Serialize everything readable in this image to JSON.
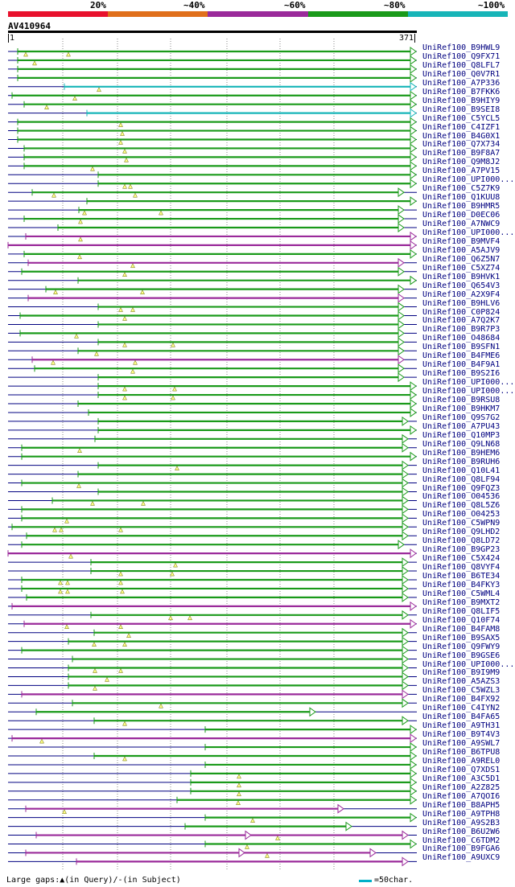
{
  "legend": {
    "segments": [
      {
        "label": "20%",
        "color": "#e8112d"
      },
      {
        "label": "~40%",
        "color": "#e06f1b"
      },
      {
        "label": "~60%",
        "color": "#9a2a9a"
      },
      {
        "label": "~80%",
        "color": "#1a9a1a"
      },
      {
        "label": "~100%",
        "color": "#17b5b8"
      }
    ]
  },
  "query": {
    "id": "AV410964",
    "start": "1",
    "end": "371"
  },
  "colors": {
    "green": "#1a9a1a",
    "magenta": "#9a2a9a",
    "cyan": "#17b5b8",
    "guide": "#000080"
  },
  "hits": [
    {
      "name": "UniRef100_B9HWL9",
      "color": "green",
      "s": 22,
      "e": 510,
      "tri": [
        32,
        85
      ]
    },
    {
      "name": "Q9FX71",
      "color": "green",
      "s": 22,
      "e": 510,
      "tri": [
        43
      ]
    },
    {
      "name": "Q8LFL7",
      "color": "green",
      "s": 22,
      "e": 510,
      "tri": []
    },
    {
      "name": "Q0V7R1",
      "color": "green",
      "s": 22,
      "e": 510,
      "tri": []
    },
    {
      "name": "A7P336",
      "color": "cyan",
      "s": 80,
      "e": 510,
      "tri": [
        123
      ]
    },
    {
      "name": "B7FKK6",
      "color": "green",
      "s": 15,
      "e": 510,
      "tri": [
        93
      ]
    },
    {
      "name": "B9HIY9",
      "color": "green",
      "s": 30,
      "e": 510,
      "tri": [
        58
      ]
    },
    {
      "name": "B9SEI8",
      "color": "cyan",
      "s": 108,
      "e": 510,
      "tri": []
    },
    {
      "name": "C5YCL5",
      "color": "green",
      "s": 22,
      "e": 510,
      "tri": [
        150
      ]
    },
    {
      "name": "C4IZF1",
      "color": "green",
      "s": 22,
      "e": 510,
      "tri": [
        152
      ]
    },
    {
      "name": "B4G0X1",
      "color": "green",
      "s": 22,
      "e": 510,
      "tri": [
        150
      ]
    },
    {
      "name": "Q7X734",
      "color": "green",
      "s": 30,
      "e": 510,
      "tri": [
        155
      ]
    },
    {
      "name": "B9F8A7",
      "color": "green",
      "s": 30,
      "e": 510,
      "tri": [
        157
      ]
    },
    {
      "name": "Q9M8J2",
      "color": "green",
      "s": 30,
      "e": 510,
      "tri": [
        115
      ]
    },
    {
      "name": "A7PV15",
      "color": "green",
      "s": 122,
      "e": 510,
      "tri": []
    },
    {
      "name": "UPI000...",
      "color": "green",
      "s": 122,
      "e": 510,
      "tri": [
        155,
        162
      ]
    },
    {
      "name": "C5Z7K9",
      "color": "green",
      "s": 40,
      "e": 495,
      "tri": [
        67,
        168
      ]
    },
    {
      "name": "Q1KUU8",
      "color": "green",
      "s": 108,
      "e": 510,
      "tri": []
    },
    {
      "name": "B9HMR5",
      "color": "green",
      "s": 98,
      "e": 495,
      "tri": [
        105,
        200
      ]
    },
    {
      "name": "D0EC06",
      "color": "green",
      "s": 30,
      "e": 495,
      "tri": [
        100
      ]
    },
    {
      "name": "A7NWC9",
      "color": "green",
      "s": 72,
      "e": 495,
      "tri": []
    },
    {
      "name": "UPI000...",
      "color": "magenta",
      "s": 32,
      "e": 510,
      "tri": [
        100
      ]
    },
    {
      "name": "B9MVF4",
      "color": "magenta",
      "s": 10,
      "e": 510,
      "tri": []
    },
    {
      "name": "A5AJV9",
      "color": "green",
      "s": 30,
      "e": 510,
      "tri": [
        99
      ]
    },
    {
      "name": "Q6Z5N7",
      "color": "magenta",
      "s": 35,
      "e": 495,
      "tri": [
        165
      ]
    },
    {
      "name": "C5XZ74",
      "color": "green",
      "s": 27,
      "e": 495,
      "tri": [
        155
      ]
    },
    {
      "name": "B9HVK1",
      "color": "green",
      "s": 97,
      "e": 510,
      "tri": []
    },
    {
      "name": "Q654V3",
      "color": "green",
      "s": 57,
      "e": 495,
      "tri": [
        69,
        177
      ]
    },
    {
      "name": "A2X9F4",
      "color": "magenta",
      "s": 35,
      "e": 495,
      "tri": []
    },
    {
      "name": "B9HLV6",
      "color": "green",
      "s": 122,
      "e": 495,
      "tri": [
        150,
        165
      ]
    },
    {
      "name": "C0P824",
      "color": "green",
      "s": 25,
      "e": 495,
      "tri": [
        155
      ]
    },
    {
      "name": "A7Q2K7",
      "color": "green",
      "s": 122,
      "e": 495,
      "tri": []
    },
    {
      "name": "B9R7P3",
      "color": "green",
      "s": 25,
      "e": 495,
      "tri": [
        95
      ]
    },
    {
      "name": "O48684",
      "color": "green",
      "s": 122,
      "e": 495,
      "tri": [
        155,
        215
      ]
    },
    {
      "name": "B9SFN1",
      "color": "green",
      "s": 97,
      "e": 495,
      "tri": [
        120
      ]
    },
    {
      "name": "B4FME6",
      "color": "magenta",
      "s": 40,
      "e": 495,
      "tri": [
        66,
        168
      ]
    },
    {
      "name": "B4F9A1",
      "color": "green",
      "s": 43,
      "e": 495,
      "tri": [
        165
      ]
    },
    {
      "name": "B9S2I6",
      "color": "green",
      "s": 122,
      "e": 495,
      "tri": []
    },
    {
      "name": "UPI000...",
      "color": "green",
      "s": 122,
      "e": 510,
      "tri": [
        155,
        217
      ]
    },
    {
      "name": "UPI000...",
      "color": "green",
      "s": 122,
      "e": 510,
      "tri": [
        155,
        215
      ]
    },
    {
      "name": "B9RSU8",
      "color": "green",
      "s": 97,
      "e": 510,
      "tri": []
    },
    {
      "name": "B9HKM7",
      "color": "green",
      "s": 110,
      "e": 510,
      "tri": []
    },
    {
      "name": "Q9S7G2",
      "color": "green",
      "s": 122,
      "e": 500,
      "tri": []
    },
    {
      "name": "A7PU43",
      "color": "green",
      "s": 122,
      "e": 510,
      "tri": []
    },
    {
      "name": "Q10MP3",
      "color": "green",
      "s": 118,
      "e": 500,
      "tri": []
    },
    {
      "name": "Q9LN68",
      "color": "green",
      "s": 27,
      "e": 500,
      "tri": [
        99
      ]
    },
    {
      "name": "B9HEM6",
      "color": "green",
      "s": 27,
      "e": 510,
      "tri": []
    },
    {
      "name": "B9RUH6",
      "color": "green",
      "s": 122,
      "e": 500,
      "tri": [
        220
      ]
    },
    {
      "name": "Q10L41",
      "color": "green",
      "s": 97,
      "e": 500,
      "tri": []
    },
    {
      "name": "Q8LF94",
      "color": "green",
      "s": 27,
      "e": 500,
      "tri": [
        98
      ]
    },
    {
      "name": "Q9FQZ3",
      "color": "green",
      "s": 122,
      "e": 500,
      "tri": []
    },
    {
      "name": "O04536",
      "color": "green",
      "s": 65,
      "e": 500,
      "tri": [
        115,
        178
      ]
    },
    {
      "name": "Q8L5Z6",
      "color": "green",
      "s": 27,
      "e": 500,
      "tri": []
    },
    {
      "name": "O04253",
      "color": "green",
      "s": 27,
      "e": 500,
      "tri": [
        83
      ]
    },
    {
      "name": "C5WPN9",
      "color": "green",
      "s": 15,
      "e": 500,
      "tri": [
        68,
        76,
        150
      ]
    },
    {
      "name": "Q9LHD2",
      "color": "green",
      "s": 33,
      "e": 500,
      "tri": []
    },
    {
      "name": "Q8LD72",
      "color": "green",
      "s": 27,
      "e": 495,
      "tri": []
    },
    {
      "name": "B9GP23",
      "color": "magenta",
      "s": 10,
      "e": 510,
      "tri": [
        88
      ]
    },
    {
      "name": "C5X424",
      "color": "green",
      "s": 113,
      "e": 500,
      "tri": [
        218
      ]
    },
    {
      "name": "Q8VYF4",
      "color": "green",
      "s": 113,
      "e": 500,
      "tri": [
        150,
        214
      ]
    },
    {
      "name": "B6TE34",
      "color": "green",
      "s": 27,
      "e": 500,
      "tri": [
        75,
        84,
        150
      ]
    },
    {
      "name": "B4FKY3",
      "color": "green",
      "s": 27,
      "e": 500,
      "tri": [
        75,
        84,
        152
      ]
    },
    {
      "name": "C5WML4",
      "color": "green",
      "s": 33,
      "e": 500,
      "tri": []
    },
    {
      "name": "B9MXT2",
      "color": "magenta",
      "s": 15,
      "e": 510,
      "tri": []
    },
    {
      "name": "Q8LIF5",
      "color": "green",
      "s": 113,
      "e": 500,
      "tri": [
        212,
        236
      ]
    },
    {
      "name": "Q10F74",
      "color": "magenta",
      "s": 30,
      "e": 510,
      "tri": [
        83,
        150
      ]
    },
    {
      "name": "B4FAM8",
      "color": "green",
      "s": 117,
      "e": 500,
      "tri": [
        160
      ]
    },
    {
      "name": "B9SAX5",
      "color": "green",
      "s": 85,
      "e": 500,
      "tri": [
        117,
        155
      ]
    },
    {
      "name": "Q9FWY9",
      "color": "green",
      "s": 27,
      "e": 500,
      "tri": []
    },
    {
      "name": "B9GSE6",
      "color": "green",
      "s": 90,
      "e": 500,
      "tri": []
    },
    {
      "name": "UPI000...",
      "color": "green",
      "s": 85,
      "e": 500,
      "tri": [
        118,
        150
      ]
    },
    {
      "name": "B9I9M9",
      "color": "green",
      "s": 85,
      "e": 500,
      "tri": [
        133
      ]
    },
    {
      "name": "A5AZS3",
      "color": "green",
      "s": 85,
      "e": 500,
      "tri": [
        118
      ]
    },
    {
      "name": "C5WZL3",
      "color": "magenta",
      "s": 27,
      "e": 500,
      "tri": []
    },
    {
      "name": "B4FX92",
      "color": "green",
      "s": 90,
      "e": 500,
      "tri": [
        200
      ]
    },
    {
      "name": "C4IYN2",
      "color": "green",
      "s": 45,
      "e": 385,
      "tri": []
    },
    {
      "name": "B4FA65",
      "color": "green",
      "s": 117,
      "e": 500,
      "tri": [
        155
      ]
    },
    {
      "name": "A9TH31",
      "color": "green",
      "s": 255,
      "e": 510,
      "tri": []
    },
    {
      "name": "B9T4V3",
      "color": "magenta",
      "s": 15,
      "e": 510,
      "tri": [
        52
      ]
    },
    {
      "name": "A9SWL7",
      "color": "green",
      "s": 255,
      "e": 510,
      "tri": []
    },
    {
      "name": "B6TPU8",
      "color": "green",
      "s": 117,
      "e": 510,
      "tri": [
        155
      ]
    },
    {
      "name": "A9REL0",
      "color": "green",
      "s": 255,
      "e": 510,
      "tri": []
    },
    {
      "name": "Q7XDS1",
      "color": "green",
      "s": 237,
      "e": 510,
      "tri": [
        297
      ]
    },
    {
      "name": "A3C5D1",
      "color": "green",
      "s": 237,
      "e": 510,
      "tri": [
        297
      ]
    },
    {
      "name": "A2Z825",
      "color": "green",
      "s": 237,
      "e": 510,
      "tri": [
        297
      ]
    },
    {
      "name": "A7QOI6",
      "color": "green",
      "s": 220,
      "e": 510,
      "tri": [
        296
      ]
    },
    {
      "name": "B8APH5",
      "color": "magenta",
      "s": 32,
      "e": 420,
      "tri": [
        80
      ]
    },
    {
      "name": "A9TPH8",
      "color": "green",
      "s": 255,
      "e": 510,
      "tri": [
        314
      ]
    },
    {
      "name": "A9S2B3",
      "color": "green",
      "s": 230,
      "e": 430,
      "tri": []
    },
    {
      "name": "B6U2W6",
      "color": "magenta",
      "s": 45,
      "e": 500,
      "tri": [
        345
      ],
      "mid": [
        305
      ]
    },
    {
      "name": "C6TDM2",
      "color": "green",
      "s": 255,
      "e": 510,
      "tri": [
        307
      ]
    },
    {
      "name": "B9FGA6",
      "color": "magenta",
      "s": 32,
      "e": 460,
      "tri": [
        332
      ],
      "mid": [
        297
      ]
    },
    {
      "name": "A9UXC9",
      "color": "magenta",
      "s": 95,
      "e": 500,
      "tri": []
    }
  ],
  "footer": {
    "gaps_text": "Large gaps:▲(in Query)/-(in Subject)",
    "scale_text": "=50char."
  }
}
